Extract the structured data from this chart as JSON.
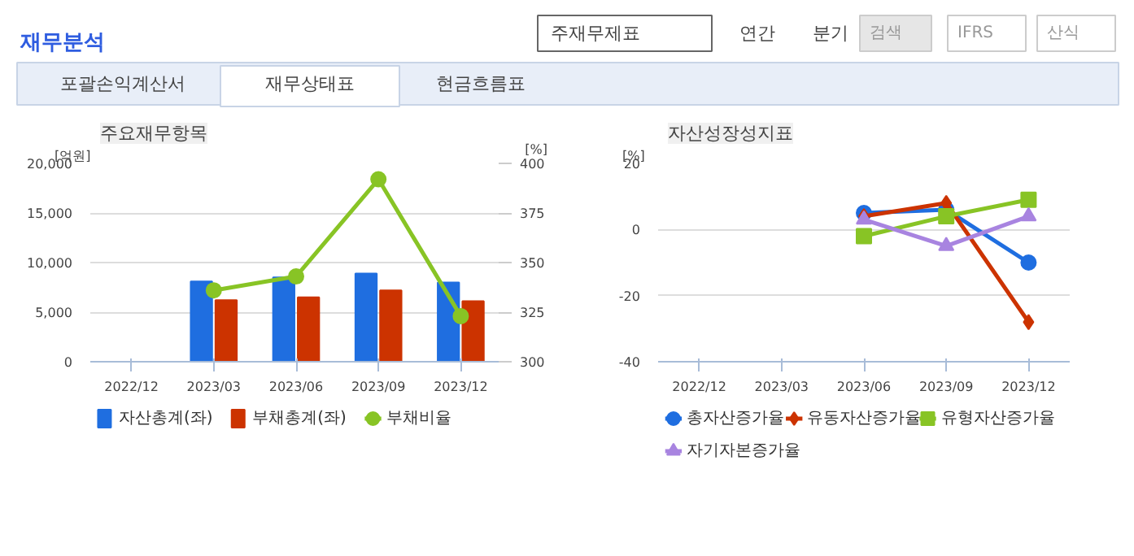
{
  "chart_data": [
    {
      "type": "other",
      "title": "재무분석",
      "annotations": [
        "주재무제표",
        "연간",
        "분기",
        "검색",
        "IFRS",
        "산식",
        "포괄손익계산서",
        "재무상태표",
        "현금흐름표"
      ]
    },
    {
      "type": "bar",
      "title": "주요재무항목",
      "ylabel": "[억원]",
      "y2label": "[%]",
      "categories": [
        "2022/12",
        "2023/03",
        "2023/06",
        "2023/09",
        "2023/12"
      ],
      "series": [
        {
          "name": "자산총계(좌)",
          "color": "#1f6ee0",
          "values": [
            null,
            8100,
            8500,
            8900,
            8000
          ]
        },
        {
          "name": "부채총계(좌)",
          "color": "#cc3300",
          "values": [
            null,
            6200,
            6500,
            7200,
            6100
          ]
        },
        {
          "name": "부채비율",
          "type": "line",
          "axis": "y2",
          "color": "#88c425",
          "marker": "circle",
          "values": [
            null,
            336,
            343,
            392,
            323
          ]
        }
      ],
      "ylim": [
        0,
        20000
      ],
      "yticks": [
        {
          "value": 0,
          "label": "0"
        },
        {
          "value": 5000,
          "label": "5,000"
        },
        {
          "value": 10000,
          "label": "10,000"
        },
        {
          "value": 15000,
          "label": "15,000"
        },
        {
          "value": 20000,
          "label": "20,000"
        }
      ],
      "y2lim": [
        300,
        400
      ],
      "y2ticks": [
        300,
        325,
        350,
        375,
        400
      ],
      "grid": "y",
      "legend": "bottom"
    },
    {
      "type": "line",
      "title": "자산성장성지표",
      "ylabel": "[%]",
      "categories": [
        "2022/12",
        "2023/03",
        "2023/06",
        "2023/09",
        "2023/12"
      ],
      "series": [
        {
          "name": "총자산증가율",
          "color": "#1f6ee0",
          "marker": "circle",
          "values": [
            null,
            null,
            5,
            6,
            -10
          ]
        },
        {
          "name": "유동자산증가율",
          "color": "#cc3300",
          "marker": "diamond",
          "values": [
            null,
            null,
            4,
            8,
            -28
          ]
        },
        {
          "name": "유형자산증가율",
          "color": "#88c425",
          "marker": "square",
          "values": [
            null,
            null,
            -2,
            4,
            9
          ]
        },
        {
          "name": "자기자본증가율",
          "color": "#a884e0",
          "marker": "triangle",
          "values": [
            null,
            null,
            3,
            -5,
            4
          ]
        }
      ],
      "ylim": [
        -40,
        20
      ],
      "yticks": [
        -40,
        -20,
        0,
        20
      ],
      "grid": "y",
      "legend": "bottom"
    }
  ]
}
